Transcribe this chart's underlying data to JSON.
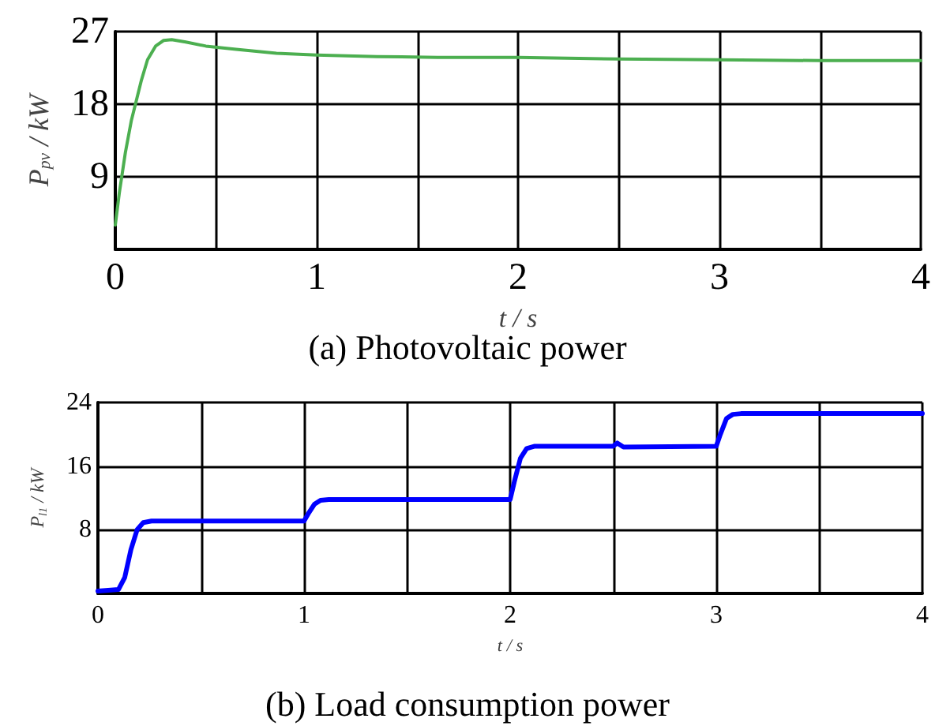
{
  "chart_data": [
    {
      "type": "line",
      "title": "(a) Photovoltaic power",
      "xlabel": "t / s",
      "ylabel": "P$_{pv}$ / kW",
      "xlim": [
        0,
        4
      ],
      "xticks": [
        0,
        {
          "value": 0.5,
          "label": null
        },
        1,
        {
          "value": 1.5,
          "label": null
        },
        2,
        {
          "value": 2.5,
          "label": null
        },
        3,
        {
          "value": 3.5,
          "label": null
        },
        4
      ],
      "ylim": [
        0,
        27
      ],
      "yticks": [
        {
          "value": 0,
          "label": null
        },
        9,
        18,
        27
      ],
      "grid": true,
      "marker": "none",
      "series": [
        {
          "color": "#4caf50",
          "x": [
            0,
            0.02,
            0.05,
            0.08,
            0.1,
            0.13,
            0.16,
            0.2,
            0.24,
            0.28,
            0.35,
            0.45,
            0.6,
            0.8,
            1,
            1.3,
            1.6,
            2,
            2.5,
            3,
            3.5,
            4
          ],
          "values": [
            3,
            7,
            12,
            16,
            18,
            21,
            23.5,
            25.2,
            25.9,
            26,
            25.7,
            25.2,
            24.8,
            24.3,
            24.1,
            23.9,
            23.8,
            23.8,
            23.6,
            23.5,
            23.4,
            23.4
          ]
        }
      ]
    },
    {
      "type": "line",
      "title": "(b) Load consumption power",
      "xlabel": "t / s",
      "ylabel": "P$_{l1}$ / kW",
      "xlim": [
        0,
        4
      ],
      "xticks": [
        0,
        {
          "value": 0.5,
          "label": null
        },
        1,
        {
          "value": 1.5,
          "label": null
        },
        2,
        {
          "value": 2.5,
          "label": null
        },
        3,
        {
          "value": 3.5,
          "label": null
        },
        4
      ],
      "ylim": [
        0,
        24
      ],
      "yticks": [
        {
          "value": 0,
          "label": null
        },
        8,
        16,
        24
      ],
      "grid": true,
      "marker": "none",
      "series": [
        {
          "color": "#0000ff",
          "x": [
            0,
            0.1,
            0.13,
            0.16,
            0.19,
            0.22,
            0.26,
            1,
            1.02,
            1.05,
            1.08,
            1.12,
            2,
            2.02,
            2.05,
            2.08,
            2.12,
            2.5,
            2.52,
            2.55,
            3,
            3.02,
            3.05,
            3.08,
            3.12,
            4
          ],
          "values": [
            0.3,
            0.5,
            2,
            5.5,
            8,
            8.9,
            9.1,
            9.1,
            10,
            11.2,
            11.7,
            11.8,
            11.8,
            14,
            17,
            18.2,
            18.5,
            18.5,
            18.9,
            18.4,
            18.5,
            20,
            22,
            22.5,
            22.6,
            22.6
          ]
        }
      ]
    }
  ]
}
